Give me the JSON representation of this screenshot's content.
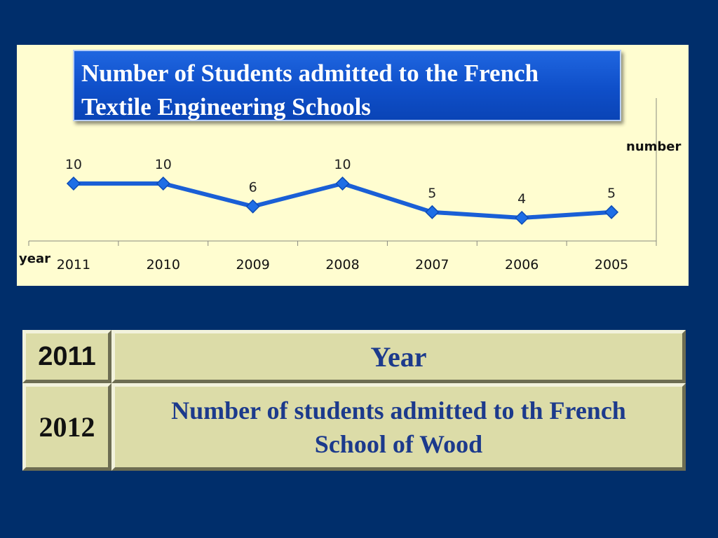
{
  "chart_data": {
    "type": "line",
    "title": "Number of Students admitted to the French Textile Engineering Schools",
    "xlabel": "year",
    "ylabel": "number",
    "categories": [
      "2011",
      "2010",
      "2009",
      "2008",
      "2007",
      "2006",
      "2005"
    ],
    "series": [
      {
        "values": [
          10,
          10,
          6,
          10,
          5,
          4,
          5
        ]
      }
    ],
    "data_labels": [
      "10",
      "10",
      "6",
      "10",
      "5",
      "4",
      "5"
    ],
    "line_color": "#1a5fd6",
    "grid": false,
    "legend": "none"
  },
  "table": {
    "rows": [
      {
        "label": "2011",
        "text": "Year"
      },
      {
        "label": "2012",
        "text": "Number of students admitted to th French School of Wood"
      }
    ]
  },
  "colors": {
    "background": "#002e6b",
    "chart_panel": "#fffdd0",
    "title_box": "#0f4fc9",
    "table_cell": "#dcdca8",
    "table_text": "#1c3a8c"
  }
}
